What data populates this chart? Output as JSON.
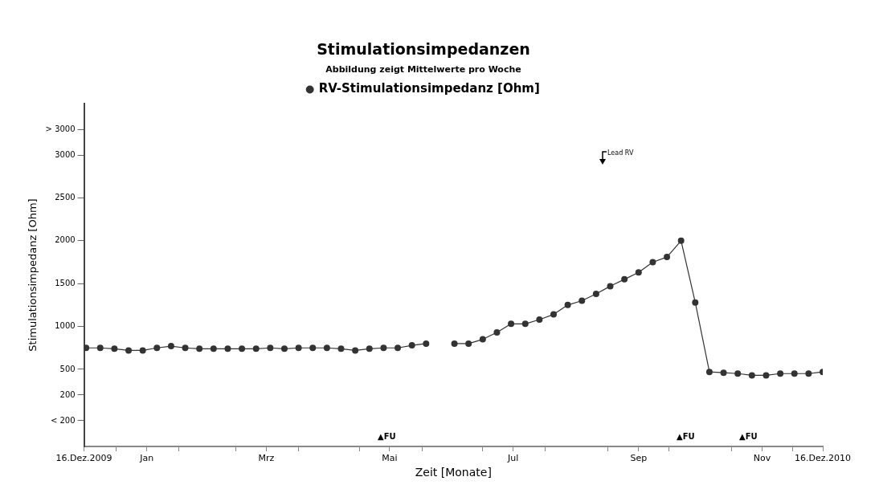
{
  "chart_data": {
    "type": "line",
    "title": "Stimulationsimpedanzen",
    "subtitle": "Abbildung zeigt Mittelwerte pro Woche",
    "xlabel": "Zeit [Monate]",
    "ylabel": "Stimulationsimpedanz [Ohm]",
    "x": [
      "2009-12-17",
      "2009-12-24",
      "2009-12-31",
      "2010-01-07",
      "2010-01-14",
      "2010-01-21",
      "2010-01-28",
      "2010-02-04",
      "2010-02-11",
      "2010-02-18",
      "2010-02-25",
      "2010-03-04",
      "2010-03-11",
      "2010-03-18",
      "2010-03-25",
      "2010-04-01",
      "2010-04-08",
      "2010-04-15",
      "2010-04-22",
      "2010-04-29",
      "2010-05-06",
      "2010-05-13",
      "2010-05-20",
      "2010-05-27",
      "2010-06-03",
      "2010-06-10",
      "2010-06-17",
      "2010-06-24",
      "2010-07-01",
      "2010-07-08",
      "2010-07-15",
      "2010-07-22",
      "2010-07-29",
      "2010-08-05",
      "2010-08-12",
      "2010-08-19",
      "2010-08-26",
      "2010-09-02",
      "2010-09-09",
      "2010-09-16",
      "2010-09-23",
      "2010-09-30",
      "2010-10-07",
      "2010-10-14",
      "2010-10-21",
      "2010-10-28",
      "2010-11-04",
      "2010-11-11",
      "2010-11-18",
      "2010-11-25",
      "2010-12-02",
      "2010-12-09",
      "2010-12-16"
    ],
    "series": [
      {
        "name": "RV-Stimulationsimpedanz [Ohm]",
        "color": "#333333",
        "values": [
          750,
          750,
          740,
          720,
          720,
          750,
          770,
          750,
          740,
          740,
          740,
          740,
          740,
          750,
          740,
          750,
          750,
          750,
          740,
          720,
          740,
          750,
          750,
          780,
          800,
          null,
          800,
          800,
          850,
          930,
          1030,
          1030,
          1080,
          1140,
          1250,
          1300,
          1380,
          1470,
          1550,
          1630,
          1750,
          1810,
          2000,
          1280,
          470,
          460,
          450,
          430,
          430,
          450,
          450,
          450,
          470
        ]
      }
    ],
    "xlim": [
      "2009-12-16",
      "2010-12-16"
    ],
    "xticks": [
      {
        "value": "2009-12-16",
        "label": "16.Dez.2009"
      },
      {
        "value": "2010-01-01",
        "label": null
      },
      {
        "value": "2010-01-16",
        "label": "Jan"
      },
      {
        "value": "2010-02-01",
        "label": null
      },
      {
        "value": "2010-03-01",
        "label": null
      },
      {
        "value": "2010-03-16",
        "label": "Mrz"
      },
      {
        "value": "2010-04-01",
        "label": null
      },
      {
        "value": "2010-05-01",
        "label": null
      },
      {
        "value": "2010-05-16",
        "label": "Mai"
      },
      {
        "value": "2010-06-01",
        "label": null
      },
      {
        "value": "2010-07-01",
        "label": null
      },
      {
        "value": "2010-07-16",
        "label": "Jul"
      },
      {
        "value": "2010-08-01",
        "label": null
      },
      {
        "value": "2010-09-01",
        "label": null
      },
      {
        "value": "2010-09-16",
        "label": "Sep"
      },
      {
        "value": "2010-10-01",
        "label": null
      },
      {
        "value": "2010-11-01",
        "label": null
      },
      {
        "value": "2010-11-16",
        "label": "Nov"
      },
      {
        "value": "2010-12-01",
        "label": null
      },
      {
        "value": "2010-12-16",
        "label": "16.Dez.2010"
      }
    ],
    "ylim": [
      -400,
      3600
    ],
    "yticks": [
      {
        "value": -100,
        "label": "< 200"
      },
      200,
      500,
      1000,
      1500,
      2000,
      2500,
      3000,
      {
        "value": 3300,
        "label": "> 3000"
      }
    ],
    "annotations": [
      "Lead RV",
      "▲FU",
      "▲FU",
      "▲FU"
    ],
    "legend": "top",
    "marker": "circle",
    "line_style": "solid",
    "grid": false
  }
}
